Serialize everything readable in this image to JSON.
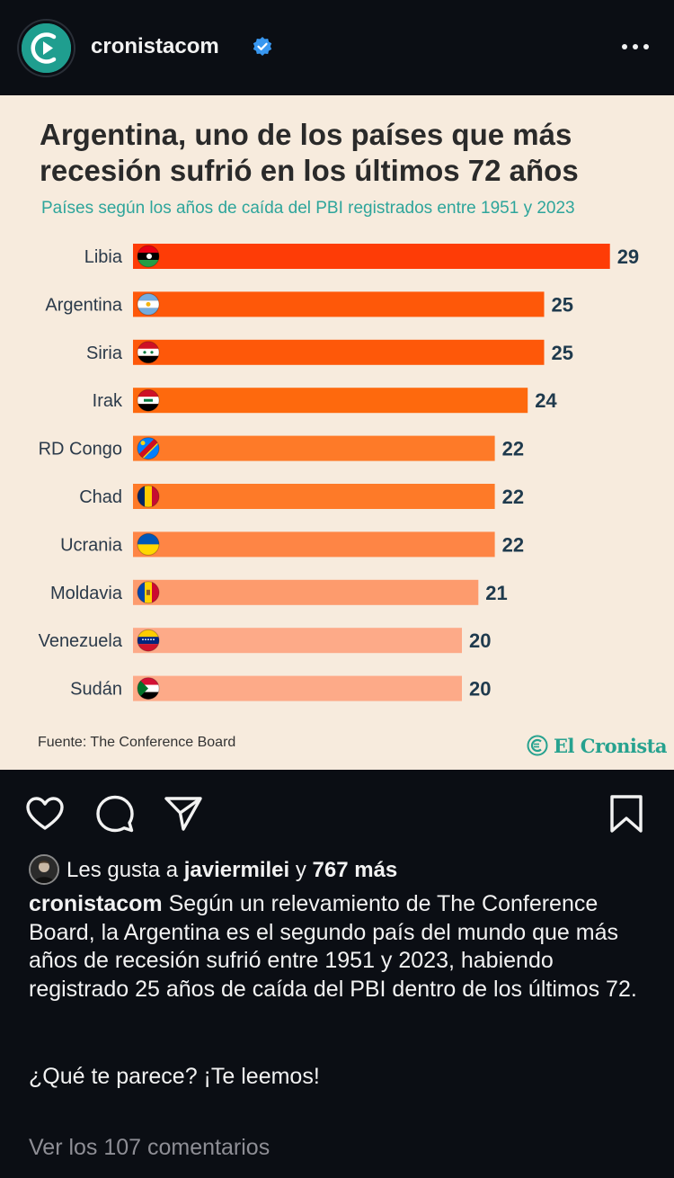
{
  "header": {
    "username": "cronistacom",
    "verified": true,
    "more_icon": "more-horizontal-icon"
  },
  "post": {
    "title_line1": "Argentina, uno de los países que más",
    "title_line2": "recesión sufrió en los últimos 72 años",
    "subtitle": "Países según los años de caída del PBI registrados entre 1951 y 2023",
    "source": "Fuente: The Conference Board",
    "brand": "El Cronista",
    "brand_color": "#27a28f"
  },
  "chart_data": {
    "type": "bar",
    "orientation": "horizontal",
    "title": "Argentina, uno de los países que más recesión sufrió en los últimos 72 años",
    "subtitle": "Países según los años de caída del PBI registrados entre 1951 y 2023",
    "categories": [
      "Libia",
      "Argentina",
      "Siria",
      "Irak",
      "RD Congo",
      "Chad",
      "Ucrania",
      "Moldavia",
      "Venezuela",
      "Sudán"
    ],
    "values": [
      29,
      25,
      25,
      24,
      22,
      22,
      22,
      21,
      20,
      20
    ],
    "colors": [
      "#fe3c06",
      "#fe5809",
      "#fe5809",
      "#fe690d",
      "#fe7a28",
      "#fe7a28",
      "#fe8545",
      "#fd9b6d",
      "#fdaa88",
      "#fdaa88"
    ],
    "data_labels": true,
    "grid": false,
    "legend": "none"
  },
  "actions": {
    "like_icon": "heart-icon",
    "comment_icon": "comment-icon",
    "share_icon": "send-icon",
    "save_icon": "bookmark-icon"
  },
  "likes": {
    "prefix": "Les gusta a",
    "user": "javiermilei",
    "joiner": "y",
    "others": "767 más"
  },
  "caption": {
    "username": "cronistacom",
    "text": "Según un relevamiento de The Conference Board, la Argentina es el segundo país del mundo que más años de recesión sufrió entre 1951 y 2023, habiendo registrado 25 años de caída del PBI dentro de los últimos 72.",
    "question": "¿Qué te parece? ¡Te leemos!"
  },
  "comments": {
    "label": "Ver los 107 comentarios"
  }
}
